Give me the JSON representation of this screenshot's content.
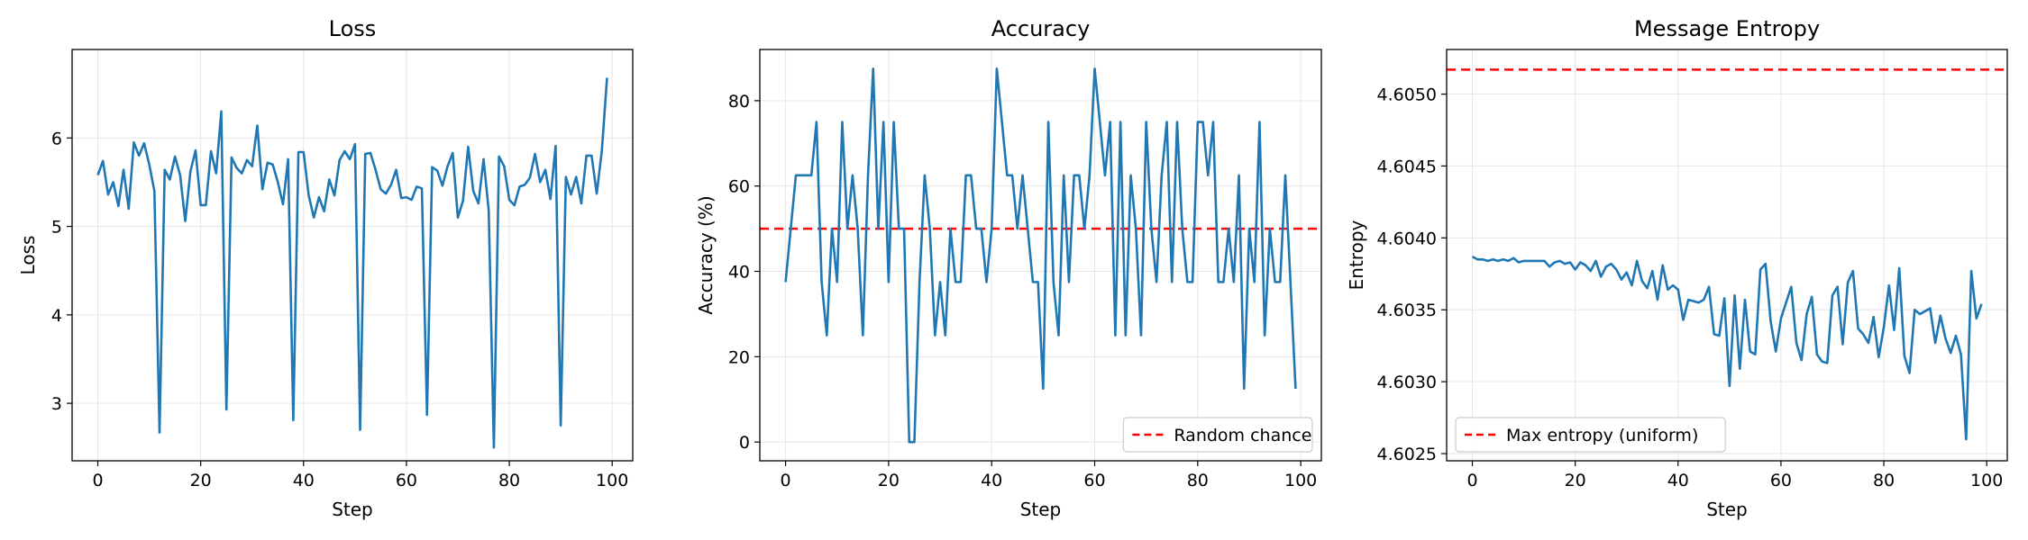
{
  "chart_data": [
    {
      "type": "line",
      "title": "Loss",
      "xlabel": "Step",
      "ylabel": "Loss",
      "xlim": [
        -5,
        104
      ],
      "ylim": [
        2.35,
        7.0
      ],
      "xticks": [
        0,
        20,
        40,
        60,
        80,
        100
      ],
      "yticks": [
        3,
        4,
        5,
        6
      ],
      "ytick_labels": [
        "3",
        "4",
        "5",
        "6"
      ],
      "grid": true,
      "line_color": "#1f77b4",
      "series": [
        {
          "values": [
            5.58,
            5.74,
            5.36,
            5.5,
            5.23,
            5.64,
            5.2,
            5.95,
            5.8,
            5.94,
            5.7,
            5.4,
            2.67,
            5.64,
            5.53,
            5.79,
            5.58,
            5.06,
            5.62,
            5.86,
            5.24,
            5.24,
            5.85,
            5.6,
            6.3,
            2.93,
            5.78,
            5.66,
            5.6,
            5.75,
            5.68,
            6.14,
            5.42,
            5.72,
            5.7,
            5.5,
            5.25,
            5.76,
            2.81,
            5.84,
            5.84,
            5.35,
            5.1,
            5.33,
            5.17,
            5.53,
            5.35,
            5.75,
            5.85,
            5.76,
            5.93,
            2.7,
            5.82,
            5.83,
            5.64,
            5.42,
            5.37,
            5.47,
            5.64,
            5.32,
            5.33,
            5.3,
            5.45,
            5.43,
            2.87,
            5.67,
            5.63,
            5.46,
            5.68,
            5.83,
            5.1,
            5.29,
            5.9,
            5.4,
            5.26,
            5.76,
            5.18,
            2.5,
            5.79,
            5.68,
            5.3,
            5.24,
            5.45,
            5.47,
            5.55,
            5.82,
            5.5,
            5.64,
            5.31,
            5.91,
            2.75,
            5.56,
            5.36,
            5.56,
            5.26,
            5.8,
            5.8,
            5.37,
            5.86,
            6.68
          ]
        }
      ]
    },
    {
      "type": "line",
      "title": "Accuracy",
      "xlabel": "Step",
      "ylabel": "Accuracy (%)",
      "xlim": [
        -5,
        104
      ],
      "ylim": [
        -4.4,
        92
      ],
      "xticks": [
        0,
        20,
        40,
        60,
        80,
        100
      ],
      "yticks": [
        0,
        20,
        40,
        60,
        80
      ],
      "ytick_labels": [
        "0",
        "20",
        "40",
        "60",
        "80"
      ],
      "grid": true,
      "line_color": "#1f77b4",
      "reference_line": {
        "value": 50,
        "color": "#ff0000",
        "label": "Random chance"
      },
      "legend_position": "lower-right",
      "series": [
        {
          "values": [
            37.5,
            50,
            62.5,
            62.5,
            62.5,
            62.5,
            75,
            37.5,
            25,
            50,
            37.5,
            75,
            50,
            62.5,
            50,
            25,
            62.5,
            87.5,
            50,
            75,
            37.5,
            75,
            50,
            50,
            0,
            0,
            37.5,
            62.5,
            50,
            25,
            37.5,
            25,
            50,
            37.5,
            37.5,
            62.5,
            62.5,
            50,
            50,
            37.5,
            50,
            87.5,
            75,
            62.5,
            62.5,
            50,
            62.5,
            50,
            37.5,
            37.5,
            12.5,
            75,
            37.5,
            25,
            62.5,
            37.5,
            62.5,
            62.5,
            50,
            62.5,
            87.5,
            75,
            62.5,
            75,
            25,
            75,
            25,
            62.5,
            50,
            25,
            75,
            50,
            37.5,
            62.5,
            75,
            37.5,
            75,
            50,
            37.5,
            37.5,
            75,
            75,
            62.5,
            75,
            37.5,
            37.5,
            50,
            37.5,
            62.5,
            12.5,
            50,
            37.5,
            75,
            25,
            50,
            37.5,
            37.5,
            62.5,
            37.5,
            12.5
          ]
        }
      ]
    },
    {
      "type": "line",
      "title": "Message Entropy",
      "xlabel": "Step",
      "ylabel": "Entropy",
      "xlim": [
        -5,
        104
      ],
      "ylim": [
        4.60245,
        4.60531
      ],
      "xticks": [
        0,
        20,
        40,
        60,
        80,
        100
      ],
      "yticks": [
        4.6025,
        4.603,
        4.6035,
        4.604,
        4.6045,
        4.605
      ],
      "ytick_labels": [
        "4.6025",
        "4.6030",
        "4.6035",
        "4.6040",
        "4.6045",
        "4.6050"
      ],
      "grid": true,
      "line_color": "#1f77b4",
      "reference_line": {
        "value": 4.60517,
        "color": "#ff0000",
        "label": "Max entropy (uniform)"
      },
      "legend_position": "lower-left",
      "series": [
        {
          "values": [
            4.60387,
            4.60385,
            4.60385,
            4.60384,
            4.60385,
            4.60384,
            4.60385,
            4.60384,
            4.60386,
            4.60383,
            4.60384,
            4.60384,
            4.60384,
            4.60384,
            4.60384,
            4.6038,
            4.60383,
            4.60384,
            4.60382,
            4.60383,
            4.60378,
            4.60383,
            4.60381,
            4.60377,
            4.60384,
            4.60373,
            4.6038,
            4.60382,
            4.60378,
            4.60371,
            4.60376,
            4.60367,
            4.60384,
            4.6037,
            4.60365,
            4.60377,
            4.60357,
            4.60381,
            4.60364,
            4.60367,
            4.60364,
            4.60343,
            4.60357,
            4.60356,
            4.60355,
            4.60357,
            4.60366,
            4.60333,
            4.60332,
            4.60358,
            4.60297,
            4.6036,
            4.60309,
            4.60357,
            4.60321,
            4.60319,
            4.60378,
            4.60382,
            4.60342,
            4.60321,
            4.60344,
            4.60355,
            4.60366,
            4.60327,
            4.60315,
            4.60347,
            4.60359,
            4.60319,
            4.60314,
            4.60313,
            4.6036,
            4.60366,
            4.60326,
            4.60369,
            4.60377,
            4.60337,
            4.60333,
            4.60327,
            4.60345,
            4.60317,
            4.60338,
            4.60367,
            4.60336,
            4.60379,
            4.60318,
            4.60306,
            4.6035,
            4.60347,
            4.60349,
            4.60351,
            4.60327,
            4.60346,
            4.6033,
            4.6032,
            4.60332,
            4.60319,
            4.6026,
            4.60377,
            4.60344,
            4.60354
          ]
        }
      ]
    }
  ]
}
